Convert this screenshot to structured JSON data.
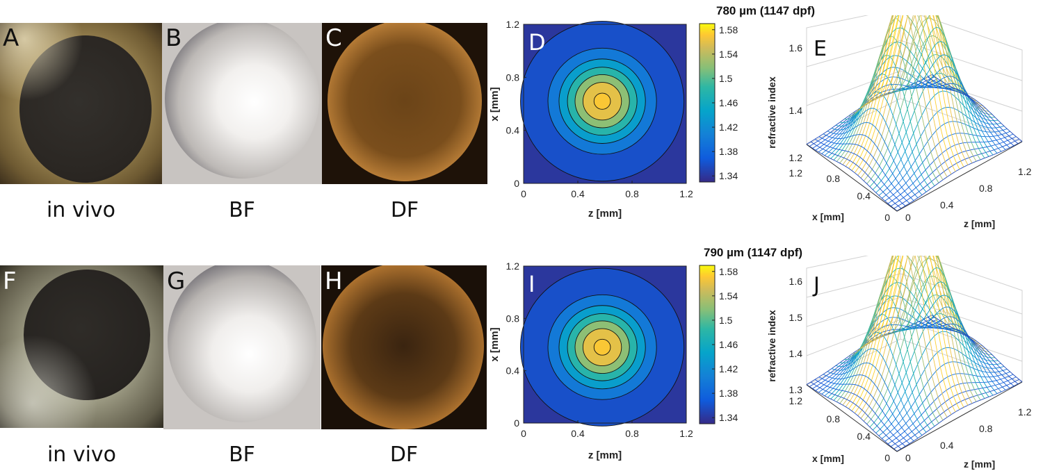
{
  "rows": [
    {
      "photo_letters": [
        "A",
        "B",
        "C"
      ],
      "captions": [
        "in vivo",
        "BF",
        "DF"
      ],
      "contour_letter": "D",
      "surface_letter": "E",
      "title": "780 µm (1147 dpf)"
    },
    {
      "photo_letters": [
        "F",
        "G",
        "H"
      ],
      "captions": [
        "in vivo",
        "BF",
        "DF"
      ],
      "contour_letter": "I",
      "surface_letter": "J",
      "title": "790 µm (1147 dpf)"
    }
  ],
  "contour": {
    "xlabel": "z [mm]",
    "ylabel": "x [mm]",
    "xticks": [
      "0",
      "0.4",
      "0.8",
      "1.2"
    ],
    "yticks": [
      "0",
      "0.4",
      "0.8",
      "1.2"
    ]
  },
  "colorbar_ticks": [
    "1.58",
    "1.54",
    "1.5",
    "1.46",
    "1.42",
    "1.38",
    "1.34"
  ],
  "surface": {
    "zlabel": "refractive index",
    "xlabel": "x [mm]",
    "ylabel": "z [mm]",
    "x_ticks": [
      "1.2",
      "0.8",
      "0.4",
      "0"
    ],
    "z_ticks": [
      "0",
      "0.4",
      "0.8",
      "1.2"
    ],
    "row1_value_ticks": [
      "1.6",
      "1.4",
      "1.2"
    ],
    "row2_value_ticks": [
      "1.6",
      "1.5",
      "1.4",
      "1.3"
    ]
  },
  "chart_data": [
    {
      "type": "heatmap",
      "panel": "D",
      "title": "780 µm (1147 dpf)",
      "xlabel": "z [mm]",
      "ylabel": "x [mm]",
      "xlim": [
        0,
        1.2
      ],
      "ylim": [
        0,
        1.2
      ],
      "clim": [
        1.33,
        1.59
      ],
      "center": [
        0.58,
        0.62
      ],
      "contour_levels": [
        1.34,
        1.38,
        1.42,
        1.46,
        1.5,
        1.54,
        1.58
      ],
      "colorbar_ticks": [
        1.34,
        1.38,
        1.42,
        1.46,
        1.5,
        1.54,
        1.58
      ]
    },
    {
      "type": "heatmap",
      "panel": "I",
      "title": "790 µm (1147 dpf)",
      "xlabel": "z [mm]",
      "ylabel": "x [mm]",
      "xlim": [
        0,
        1.2
      ],
      "ylim": [
        0,
        1.2
      ],
      "clim": [
        1.33,
        1.59
      ],
      "center": [
        0.58,
        0.58
      ],
      "contour_levels": [
        1.34,
        1.38,
        1.42,
        1.46,
        1.5,
        1.54,
        1.58
      ],
      "colorbar_ticks": [
        1.34,
        1.38,
        1.42,
        1.46,
        1.5,
        1.54,
        1.58
      ]
    }
  ]
}
